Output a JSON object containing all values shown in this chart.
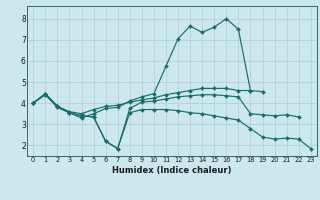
{
  "xlabel": "Humidex (Indice chaleur)",
  "bg_color": "#cce8ec",
  "grid_color": "#aacdd4",
  "line_color": "#1a6b6b",
  "xlim": [
    -0.5,
    23.5
  ],
  "ylim": [
    1.5,
    8.6
  ],
  "xticks": [
    0,
    1,
    2,
    3,
    4,
    5,
    6,
    7,
    8,
    9,
    10,
    11,
    12,
    13,
    14,
    15,
    16,
    17,
    18,
    19,
    20,
    21,
    22,
    23
  ],
  "yticks": [
    2,
    3,
    4,
    5,
    6,
    7,
    8
  ],
  "lines": [
    {
      "x": [
        0,
        1,
        2,
        3,
        4,
        5,
        6,
        7,
        8,
        9,
        10,
        11,
        12,
        13,
        14,
        15,
        16,
        17,
        18,
        19,
        20,
        21,
        22,
        23
      ],
      "y": [
        4.0,
        4.4,
        3.8,
        3.55,
        3.3,
        3.5,
        3.75,
        3.8,
        4.1,
        4.3,
        4.45,
        5.75,
        7.05,
        7.65,
        7.35,
        7.6,
        8.0,
        7.5,
        4.6,
        null,
        null,
        null,
        null,
        null
      ]
    },
    {
      "x": [
        0,
        1,
        2,
        3,
        4,
        5,
        6,
        7,
        8,
        9,
        10,
        11,
        12,
        13,
        14,
        15,
        16,
        17,
        18,
        19,
        20,
        21,
        22,
        23
      ],
      "y": [
        4.0,
        4.45,
        3.85,
        3.6,
        3.5,
        3.7,
        3.85,
        3.9,
        4.05,
        4.15,
        4.25,
        4.4,
        4.5,
        4.6,
        4.7,
        4.7,
        4.7,
        4.6,
        4.6,
        4.55,
        null,
        null,
        null,
        null
      ]
    },
    {
      "x": [
        0,
        1,
        2,
        3,
        4,
        5,
        6,
        7,
        8,
        9,
        10,
        11,
        12,
        13,
        14,
        15,
        16,
        17,
        18,
        19,
        20,
        21,
        22,
        23
      ],
      "y": [
        4.0,
        4.45,
        3.85,
        3.55,
        3.4,
        3.35,
        2.2,
        1.85,
        3.75,
        4.05,
        4.1,
        4.2,
        4.3,
        4.35,
        4.4,
        4.4,
        4.35,
        4.3,
        3.5,
        3.45,
        3.4,
        3.45,
        3.35,
        null
      ]
    },
    {
      "x": [
        0,
        1,
        2,
        3,
        4,
        5,
        6,
        7,
        8,
        9,
        10,
        11,
        12,
        13,
        14,
        15,
        16,
        17,
        18,
        19,
        20,
        21,
        22,
        23
      ],
      "y": [
        4.0,
        4.45,
        3.85,
        3.55,
        3.4,
        3.35,
        2.2,
        1.85,
        3.55,
        3.7,
        3.7,
        3.7,
        3.65,
        3.55,
        3.5,
        3.4,
        3.3,
        3.2,
        2.8,
        2.4,
        2.3,
        2.35,
        2.3,
        1.85
      ]
    }
  ]
}
